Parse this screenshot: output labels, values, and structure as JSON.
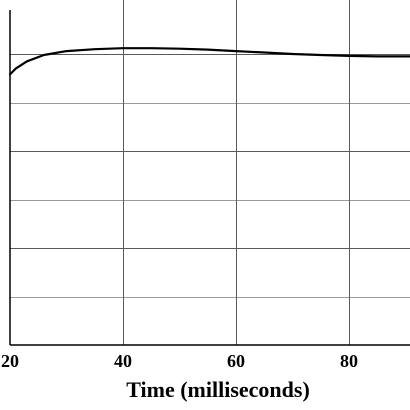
{
  "chart_data": {
    "type": "line",
    "title": "",
    "xlabel": "Time (milliseconds)",
    "ylabel": "",
    "xlim": [
      20,
      91
    ],
    "ylim": [
      0,
      6.2
    ],
    "x_ticks": [
      20,
      40,
      60,
      80
    ],
    "x_tick_labels": [
      "20",
      "40",
      "60",
      "80"
    ],
    "y_gridlines": [
      1,
      2,
      3,
      4,
      5,
      6
    ],
    "grid": true,
    "series": [
      {
        "x": [
          20,
          21,
          23,
          26,
          30,
          35,
          40,
          45,
          50,
          55,
          60,
          65,
          70,
          75,
          80,
          85,
          91
        ],
        "y": [
          5.58,
          5.7,
          5.85,
          5.98,
          6.06,
          6.1,
          6.12,
          6.12,
          6.11,
          6.09,
          6.06,
          6.03,
          6.0,
          5.98,
          5.96,
          5.95,
          5.95
        ]
      }
    ]
  }
}
